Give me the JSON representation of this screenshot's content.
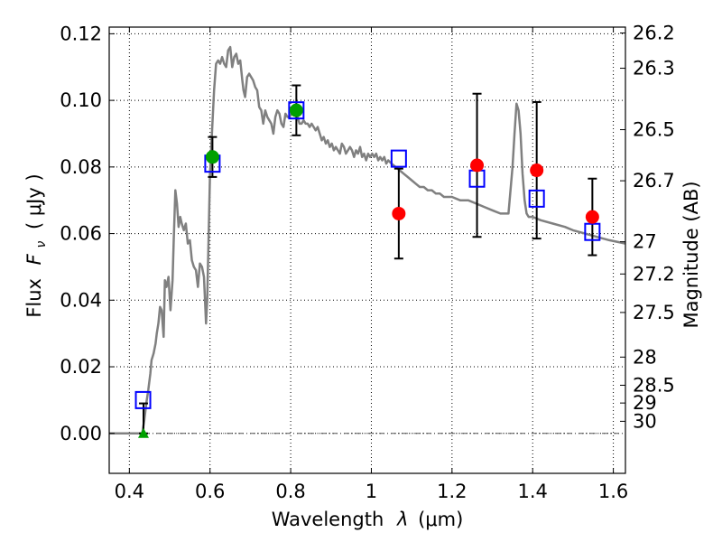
{
  "chart_data": {
    "type": "scatter",
    "xlabel_prefix": "Wavelength",
    "xlabel_symbol": "λ",
    "xlabel_unit": "(μm)",
    "ylabel_prefix": "Flux",
    "ylabel_symbol": "F",
    "ylabel_subscript": "ν",
    "ylabel_unit": "( μJy )",
    "y2label": "Magnitude (AB)",
    "xlim": [
      0.35,
      1.63
    ],
    "ylim": [
      -0.012,
      0.122
    ],
    "grid": true,
    "x_ticks": [
      {
        "value": 0.4,
        "label": "0.4"
      },
      {
        "value": 0.6,
        "label": "0.6"
      },
      {
        "value": 0.8,
        "label": "0.8"
      },
      {
        "value": 1.0,
        "label": "1"
      },
      {
        "value": 1.2,
        "label": "1.2"
      },
      {
        "value": 1.4,
        "label": "1.4"
      },
      {
        "value": 1.6,
        "label": "1.6"
      }
    ],
    "y_ticks": [
      {
        "value": 0.0,
        "label": "0.00"
      },
      {
        "value": 0.02,
        "label": "0.02"
      },
      {
        "value": 0.04,
        "label": "0.04"
      },
      {
        "value": 0.06,
        "label": "0.06"
      },
      {
        "value": 0.08,
        "label": "0.08"
      },
      {
        "value": 0.1,
        "label": "0.10"
      },
      {
        "value": 0.12,
        "label": "0.12"
      }
    ],
    "mag_ticks": [
      {
        "mag": 26.2,
        "label": "26.2"
      },
      {
        "mag": 26.3,
        "label": "26.3"
      },
      {
        "mag": 26.5,
        "label": "26.5"
      },
      {
        "mag": 26.7,
        "label": "26.7"
      },
      {
        "mag": 27.0,
        "label": "27"
      },
      {
        "mag": 27.2,
        "label": "27.2"
      },
      {
        "mag": 27.5,
        "label": "27.5"
      },
      {
        "mag": 28.0,
        "label": "28"
      },
      {
        "mag": 28.5,
        "label": "28.5"
      },
      {
        "mag": 29.0,
        "label": "29"
      },
      {
        "mag": 30.0,
        "label": "30"
      }
    ],
    "template_spectrum": {
      "name": "model SED",
      "color": "#808080",
      "x": [
        0.35,
        0.432,
        0.437,
        0.442,
        0.447,
        0.452,
        0.455,
        0.46,
        0.465,
        0.468,
        0.472,
        0.476,
        0.48,
        0.485,
        0.488,
        0.492,
        0.497,
        0.502,
        0.507,
        0.51,
        0.514,
        0.518,
        0.522,
        0.526,
        0.53,
        0.535,
        0.54,
        0.545,
        0.55,
        0.555,
        0.56,
        0.565,
        0.57,
        0.575,
        0.58,
        0.585,
        0.59,
        0.593,
        0.597,
        0.6,
        0.605,
        0.61,
        0.615,
        0.62,
        0.625,
        0.63,
        0.635,
        0.64,
        0.645,
        0.65,
        0.655,
        0.66,
        0.665,
        0.67,
        0.675,
        0.68,
        0.683,
        0.687,
        0.692,
        0.697,
        0.702,
        0.707,
        0.712,
        0.717,
        0.722,
        0.727,
        0.732,
        0.737,
        0.742,
        0.747,
        0.752,
        0.757,
        0.762,
        0.767,
        0.772,
        0.777,
        0.782,
        0.787,
        0.792,
        0.797,
        0.802,
        0.807,
        0.812,
        0.817,
        0.822,
        0.827,
        0.832,
        0.837,
        0.842,
        0.847,
        0.852,
        0.857,
        0.862,
        0.867,
        0.872,
        0.877,
        0.882,
        0.887,
        0.892,
        0.897,
        0.902,
        0.907,
        0.912,
        0.917,
        0.922,
        0.927,
        0.932,
        0.937,
        0.942,
        0.947,
        0.952,
        0.957,
        0.962,
        0.967,
        0.972,
        0.977,
        0.982,
        0.987,
        0.992,
        0.997,
        1.002,
        1.007,
        1.012,
        1.017,
        1.022,
        1.027,
        1.032,
        1.037,
        1.042,
        1.05,
        1.06,
        1.07,
        1.08,
        1.09,
        1.1,
        1.11,
        1.12,
        1.13,
        1.14,
        1.15,
        1.16,
        1.17,
        1.18,
        1.2,
        1.22,
        1.24,
        1.26,
        1.28,
        1.3,
        1.32,
        1.34,
        1.35,
        1.355,
        1.36,
        1.365,
        1.37,
        1.375,
        1.38,
        1.385,
        1.39,
        1.4,
        1.42,
        1.45,
        1.48,
        1.5,
        1.53,
        1.56,
        1.59,
        1.63
      ],
      "y": [
        0.0,
        0.0,
        0.004,
        0.009,
        0.013,
        0.018,
        0.022,
        0.024,
        0.027,
        0.03,
        0.033,
        0.038,
        0.037,
        0.029,
        0.046,
        0.044,
        0.047,
        0.037,
        0.046,
        0.058,
        0.073,
        0.069,
        0.062,
        0.065,
        0.063,
        0.061,
        0.063,
        0.057,
        0.058,
        0.052,
        0.05,
        0.049,
        0.044,
        0.051,
        0.05,
        0.047,
        0.033,
        0.04,
        0.062,
        0.078,
        0.091,
        0.103,
        0.111,
        0.112,
        0.111,
        0.113,
        0.111,
        0.11,
        0.115,
        0.116,
        0.11,
        0.113,
        0.114,
        0.111,
        0.112,
        0.106,
        0.103,
        0.101,
        0.107,
        0.108,
        0.107,
        0.106,
        0.104,
        0.103,
        0.098,
        0.097,
        0.093,
        0.097,
        0.095,
        0.094,
        0.093,
        0.09,
        0.095,
        0.097,
        0.096,
        0.093,
        0.092,
        0.096,
        0.095,
        0.095,
        0.096,
        0.097,
        0.098,
        0.095,
        0.093,
        0.093,
        0.094,
        0.093,
        0.093,
        0.092,
        0.093,
        0.092,
        0.091,
        0.092,
        0.09,
        0.088,
        0.089,
        0.087,
        0.088,
        0.086,
        0.087,
        0.085,
        0.086,
        0.085,
        0.084,
        0.087,
        0.086,
        0.084,
        0.085,
        0.086,
        0.085,
        0.083,
        0.085,
        0.084,
        0.086,
        0.083,
        0.084,
        0.082,
        0.084,
        0.083,
        0.084,
        0.083,
        0.084,
        0.082,
        0.083,
        0.082,
        0.083,
        0.081,
        0.082,
        0.081,
        0.08,
        0.079,
        0.078,
        0.077,
        0.076,
        0.075,
        0.074,
        0.074,
        0.073,
        0.073,
        0.072,
        0.072,
        0.071,
        0.071,
        0.07,
        0.07,
        0.069,
        0.068,
        0.067,
        0.066,
        0.066,
        0.08,
        0.09,
        0.099,
        0.097,
        0.09,
        0.078,
        0.07,
        0.066,
        0.065,
        0.065,
        0.064,
        0.063,
        0.062,
        0.061,
        0.06,
        0.059,
        0.058,
        0.057
      ]
    },
    "observed_points": [
      {
        "x": 0.606,
        "y": 0.083,
        "yerr": 0.006,
        "color": "#00a000",
        "marker": "circle"
      },
      {
        "x": 0.814,
        "y": 0.097,
        "yerr": 0.0075,
        "color": "#00a000",
        "marker": "circle"
      },
      {
        "x": 1.068,
        "y": 0.066,
        "yerr": 0.0135,
        "color": "#ff0000",
        "marker": "circle"
      },
      {
        "x": 1.262,
        "y": 0.0805,
        "yerr": 0.0215,
        "color": "#ff0000",
        "marker": "circle"
      },
      {
        "x": 1.41,
        "y": 0.079,
        "yerr": 0.0205,
        "color": "#ff0000",
        "marker": "circle"
      },
      {
        "x": 1.548,
        "y": 0.065,
        "yerr": 0.0115,
        "color": "#ff0000",
        "marker": "circle"
      }
    ],
    "upper_limit_points": [
      {
        "x": 0.435,
        "y": 0.0,
        "err_top": 0.009,
        "color": "#00a000",
        "marker": "triangle"
      }
    ],
    "model_points": [
      {
        "x": 0.434,
        "y": 0.01,
        "color": "#0000ff",
        "marker": "square"
      },
      {
        "x": 0.606,
        "y": 0.081,
        "color": "#0000ff",
        "marker": "square"
      },
      {
        "x": 0.814,
        "y": 0.097,
        "color": "#0000ff",
        "marker": "square"
      },
      {
        "x": 1.068,
        "y": 0.0825,
        "color": "#0000ff",
        "marker": "square"
      },
      {
        "x": 1.262,
        "y": 0.0765,
        "color": "#0000ff",
        "marker": "square"
      },
      {
        "x": 1.41,
        "y": 0.0705,
        "color": "#0000ff",
        "marker": "square"
      },
      {
        "x": 1.548,
        "y": 0.0605,
        "color": "#0000ff",
        "marker": "square"
      }
    ]
  }
}
